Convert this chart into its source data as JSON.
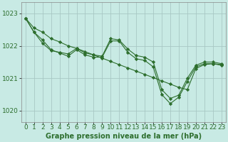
{
  "title": "Graphe pression niveau de la mer (hPa)",
  "background_color": "#c8eae4",
  "grid_color": "#a8c8c4",
  "line_color": "#2d6e2d",
  "x_values": [
    0,
    1,
    2,
    3,
    4,
    5,
    6,
    7,
    8,
    9,
    10,
    11,
    12,
    13,
    14,
    15,
    16,
    17,
    18,
    19,
    20,
    21,
    22,
    23
  ],
  "series1": [
    1022.85,
    1022.55,
    1022.42,
    1022.22,
    1022.12,
    1022.0,
    1021.92,
    1021.82,
    1021.72,
    1021.62,
    1021.52,
    1021.42,
    1021.32,
    1021.22,
    1021.12,
    1021.02,
    1020.92,
    1020.82,
    1020.72,
    1020.65,
    1021.3,
    1021.42,
    1021.45,
    1021.4
  ],
  "series2": [
    1022.85,
    1022.42,
    1022.18,
    1021.88,
    1021.78,
    1021.68,
    1021.88,
    1021.72,
    1021.65,
    1021.65,
    1022.15,
    1022.15,
    1021.8,
    1021.6,
    1021.55,
    1021.35,
    1020.5,
    1020.22,
    1020.42,
    1020.9,
    1021.35,
    1021.45,
    1021.45,
    1021.42
  ],
  "series3": [
    1022.85,
    1022.42,
    1022.08,
    1021.85,
    1021.8,
    1021.75,
    1021.92,
    1021.78,
    1021.72,
    1021.68,
    1022.22,
    1022.18,
    1021.9,
    1021.7,
    1021.65,
    1021.5,
    1020.65,
    1020.38,
    1020.48,
    1021.0,
    1021.4,
    1021.5,
    1021.5,
    1021.45
  ],
  "ylim": [
    1019.65,
    1023.35
  ],
  "yticks": [
    1020,
    1021,
    1022,
    1023
  ],
  "xlim": [
    -0.5,
    23.5
  ],
  "xticks": [
    0,
    1,
    2,
    3,
    4,
    5,
    6,
    7,
    8,
    9,
    10,
    11,
    12,
    13,
    14,
    15,
    16,
    17,
    18,
    19,
    20,
    21,
    22,
    23
  ],
  "tick_fontsize": 6.5,
  "title_fontsize": 7.0,
  "marker": "D",
  "markersize": 2.2,
  "linewidth": 0.8
}
